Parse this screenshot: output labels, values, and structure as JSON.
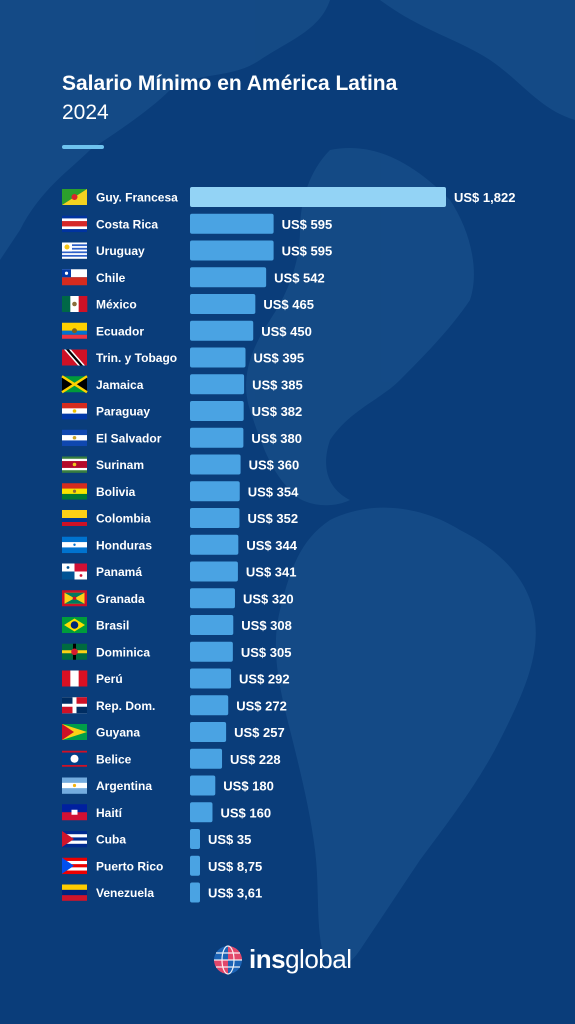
{
  "header": {
    "title": "Salario Mínimo en América Latina",
    "subtitle": "2024"
  },
  "logo": {
    "bold": "ins",
    "regular": "global",
    "icon": "globe-icon"
  },
  "colors": {
    "background": "#0a3d7a",
    "bar": "#4aa3e3",
    "bar_highlight": "#93d3f5",
    "text": "#ffffff"
  },
  "chart_data": {
    "type": "bar",
    "orientation": "horizontal",
    "categories": [
      "Guy. Francesa",
      "Costa Rica",
      "Uruguay",
      "Chile",
      "México",
      "Ecuador",
      "Trin. y Tobago",
      "Jamaica",
      "Paraguay",
      "El Salvador",
      "Surinam",
      "Bolivia",
      "Colombia",
      "Honduras",
      "Panamá",
      "Granada",
      "Brasil",
      "Dominica",
      "Perú",
      "Rep. Dom.",
      "Guyana",
      "Belice",
      "Argentina",
      "Haití",
      "Cuba",
      "Puerto Rico",
      "Venezuela"
    ],
    "values": [
      1822,
      595,
      595,
      542,
      465,
      450,
      395,
      385,
      382,
      380,
      360,
      354,
      352,
      344,
      341,
      320,
      308,
      305,
      292,
      272,
      257,
      228,
      180,
      160,
      35,
      8.75,
      3.61
    ],
    "value_labels": [
      "US$ 1,822",
      "US$ 595",
      "US$ 595",
      "US$ 542",
      "US$ 465",
      "US$ 450",
      "US$ 395",
      "US$ 385",
      "US$ 382",
      "US$ 380",
      "US$ 360",
      "US$ 354",
      "US$ 352",
      "US$ 344",
      "US$ 341",
      "US$ 320",
      "US$ 308",
      "US$ 305",
      "US$ 292",
      "US$ 272",
      "US$ 257",
      "US$ 228",
      "US$ 180",
      "US$ 160",
      "US$ 35",
      "US$ 8,75",
      "US$ 3,61"
    ],
    "flags": [
      "flag-french-guiana",
      "flag-costa-rica",
      "flag-uruguay",
      "flag-chile",
      "flag-mexico",
      "flag-ecuador",
      "flag-trinidad-tobago",
      "flag-jamaica",
      "flag-paraguay",
      "flag-el-salvador",
      "flag-suriname",
      "flag-bolivia",
      "flag-colombia",
      "flag-honduras",
      "flag-panama",
      "flag-grenada",
      "flag-brazil",
      "flag-dominica",
      "flag-peru",
      "flag-dominican-republic",
      "flag-guyana",
      "flag-belize",
      "flag-argentina",
      "flag-haiti",
      "flag-cuba",
      "flag-puerto-rico",
      "flag-venezuela"
    ],
    "xlim": [
      0,
      1822
    ],
    "grid": false,
    "legend": "none",
    "title": "",
    "xlabel": "",
    "ylabel": ""
  }
}
